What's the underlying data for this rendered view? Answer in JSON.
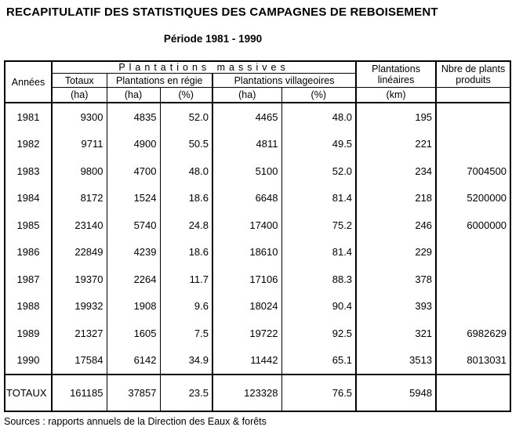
{
  "page": {
    "title": "RECAPITULATIF DES STATISTIQUES DES CAMPAGNES DE REBOISEMENT",
    "subtitle": "Période 1981 - 1990",
    "source": "Sources : rapports annuels de la Direction des Eaux & forêts"
  },
  "table": {
    "header": {
      "annees": "Années",
      "massives": "Plantations massives",
      "totaux": "Totaux",
      "regie": "Plantations en régie",
      "villageoires": "Plantations villageoires",
      "lineaires": "Plantations linéaires",
      "plants": "Nbre de plants produits",
      "unit_ha": "(ha)",
      "unit_pct": "(%)",
      "unit_km": "(km)",
      "unit_blank": ""
    },
    "rows": [
      {
        "annee": "1981",
        "totaux": "9300",
        "regie_ha": "4835",
        "regie_pct": "52.0",
        "vill_ha": "4465",
        "vill_pct": "48.0",
        "lin_km": "195",
        "plants": ""
      },
      {
        "annee": "1982",
        "totaux": "9711",
        "regie_ha": "4900",
        "regie_pct": "50.5",
        "vill_ha": "4811",
        "vill_pct": "49.5",
        "lin_km": "221",
        "plants": ""
      },
      {
        "annee": "1983",
        "totaux": "9800",
        "regie_ha": "4700",
        "regie_pct": "48.0",
        "vill_ha": "5100",
        "vill_pct": "52.0",
        "lin_km": "234",
        "plants": "7004500"
      },
      {
        "annee": "1984",
        "totaux": "8172",
        "regie_ha": "1524",
        "regie_pct": "18.6",
        "vill_ha": "6648",
        "vill_pct": "81.4",
        "lin_km": "218",
        "plants": "5200000"
      },
      {
        "annee": "1985",
        "totaux": "23140",
        "regie_ha": "5740",
        "regie_pct": "24.8",
        "vill_ha": "17400",
        "vill_pct": "75.2",
        "lin_km": "246",
        "plants": "6000000"
      },
      {
        "annee": "1986",
        "totaux": "22849",
        "regie_ha": "4239",
        "regie_pct": "18.6",
        "vill_ha": "18610",
        "vill_pct": "81.4",
        "lin_km": "229",
        "plants": ""
      },
      {
        "annee": "1987",
        "totaux": "19370",
        "regie_ha": "2264",
        "regie_pct": "11.7",
        "vill_ha": "17106",
        "vill_pct": "88.3",
        "lin_km": "378",
        "plants": ""
      },
      {
        "annee": "1988",
        "totaux": "19932",
        "regie_ha": "1908",
        "regie_pct": "9.6",
        "vill_ha": "18024",
        "vill_pct": "90.4",
        "lin_km": "393",
        "plants": ""
      },
      {
        "annee": "1989",
        "totaux": "21327",
        "regie_ha": "1605",
        "regie_pct": "7.5",
        "vill_ha": "19722",
        "vill_pct": "92.5",
        "lin_km": "321",
        "plants": "6982629"
      },
      {
        "annee": "1990",
        "totaux": "17584",
        "regie_ha": "6142",
        "regie_pct": "34.9",
        "vill_ha": "11442",
        "vill_pct": "65.1",
        "lin_km": "3513",
        "plants": "8013031"
      }
    ],
    "totals": {
      "label": "TOTAUX",
      "totaux": "161185",
      "regie_ha": "37857",
      "regie_pct": "23.5",
      "vill_ha": "123328",
      "vill_pct": "76.5",
      "lin_km": "5948",
      "plants": ""
    }
  }
}
